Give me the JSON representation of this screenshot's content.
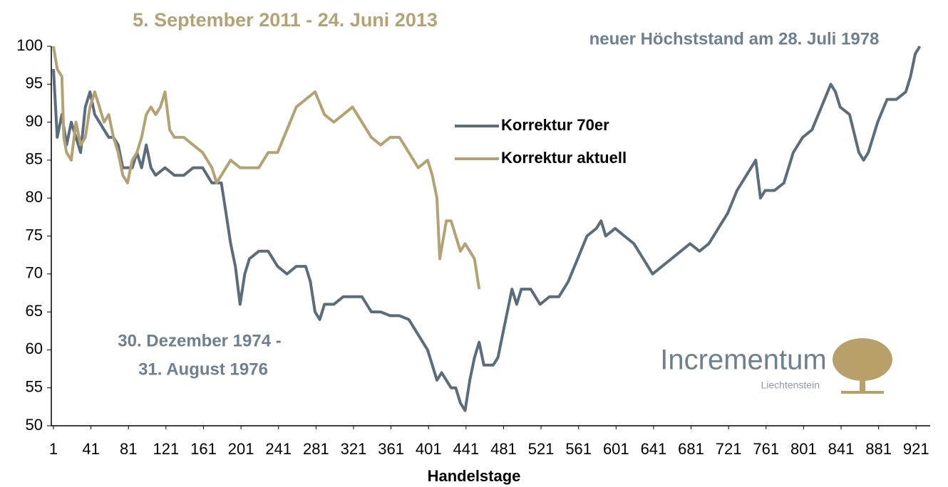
{
  "chart_data": {
    "type": "line",
    "title": "5. September 2011 - 24. Juni 2013",
    "annotation": "neuer Höchststand am 28. Juli 1978",
    "annotation_lines": [
      "30. Dezember 1974 -",
      "31. August 1976"
    ],
    "x_label": "Handelstage",
    "logo": {
      "name": "Incrementum",
      "sub": "Liechtenstein"
    },
    "xlim": [
      1,
      936
    ],
    "ylim": [
      50,
      100
    ],
    "xticks": [
      1,
      41,
      81,
      121,
      161,
      201,
      241,
      281,
      321,
      361,
      401,
      441,
      481,
      521,
      561,
      601,
      641,
      681,
      721,
      761,
      801,
      841,
      881,
      921
    ],
    "yticks": [
      50,
      55,
      60,
      65,
      70,
      75,
      80,
      85,
      90,
      95,
      100
    ],
    "grid": false,
    "series": [
      {
        "name": "Korrektur 70er",
        "color": "#5b6c7b",
        "x": [
          1,
          5,
          10,
          15,
          20,
          25,
          30,
          35,
          40,
          45,
          50,
          55,
          60,
          65,
          70,
          75,
          80,
          85,
          90,
          95,
          100,
          105,
          110,
          120,
          130,
          140,
          150,
          160,
          165,
          170,
          180,
          185,
          190,
          195,
          200,
          205,
          210,
          220,
          230,
          240,
          250,
          260,
          270,
          275,
          280,
          285,
          290,
          300,
          310,
          320,
          330,
          340,
          350,
          360,
          370,
          380,
          390,
          400,
          405,
          410,
          415,
          420,
          425,
          430,
          435,
          440,
          445,
          450,
          455,
          460,
          470,
          475,
          480,
          485,
          490,
          495,
          500,
          510,
          520,
          530,
          540,
          550,
          560,
          570,
          580,
          585,
          590,
          600,
          610,
          620,
          630,
          640,
          650,
          660,
          670,
          680,
          690,
          700,
          710,
          720,
          730,
          740,
          750,
          755,
          760,
          770,
          780,
          790,
          800,
          810,
          820,
          830,
          835,
          840,
          850,
          860,
          865,
          870,
          880,
          890,
          900,
          910,
          915,
          920,
          925
        ],
        "values": [
          97,
          88,
          91,
          87,
          90,
          88,
          86,
          92,
          94,
          91,
          90,
          89,
          88,
          88,
          87,
          84,
          84,
          84,
          86,
          84,
          87,
          84,
          83,
          84,
          83,
          83,
          84,
          84,
          83,
          82,
          82,
          78,
          74,
          71,
          66,
          70,
          72,
          73,
          73,
          71,
          70,
          71,
          71,
          69,
          65,
          64,
          66,
          66,
          67,
          67,
          67,
          65,
          65,
          64.5,
          64.5,
          64,
          62,
          60,
          58,
          56,
          57,
          56,
          55,
          55,
          53,
          52,
          56,
          59,
          61,
          58,
          58,
          59,
          62,
          65,
          68,
          66,
          68,
          68,
          66,
          67,
          67,
          69,
          72,
          75,
          76,
          77,
          75,
          76,
          75,
          74,
          72,
          70,
          71,
          72,
          73,
          74,
          73,
          74,
          76,
          78,
          81,
          83,
          85,
          80,
          81,
          81,
          82,
          86,
          88,
          89,
          92,
          95,
          94,
          92,
          91,
          86,
          85,
          86,
          90,
          93,
          93,
          94,
          96,
          99,
          100
        ]
      },
      {
        "name": "Korrektur aktuell",
        "color": "#b3a274",
        "x": [
          1,
          5,
          10,
          12,
          15,
          20,
          25,
          30,
          35,
          40,
          45,
          50,
          55,
          60,
          65,
          70,
          75,
          80,
          85,
          90,
          95,
          100,
          105,
          110,
          115,
          120,
          125,
          130,
          140,
          150,
          160,
          170,
          175,
          180,
          190,
          200,
          210,
          220,
          230,
          240,
          250,
          260,
          270,
          280,
          290,
          300,
          310,
          320,
          330,
          340,
          350,
          360,
          370,
          380,
          390,
          400,
          405,
          410,
          413,
          420,
          425,
          430,
          435,
          440,
          445,
          450,
          455
        ],
        "values": [
          100,
          97,
          96,
          88,
          86,
          85,
          90,
          87,
          88,
          92,
          94,
          92,
          90,
          91,
          88,
          86,
          83,
          82,
          85,
          86,
          88,
          91,
          92,
          91,
          92,
          94,
          89,
          88,
          88,
          87,
          86,
          84,
          82,
          83,
          85,
          84,
          84,
          84,
          86,
          86,
          89,
          92,
          93,
          94,
          91,
          90,
          91,
          92,
          90,
          88,
          87,
          88,
          88,
          86,
          84,
          85,
          83,
          80,
          72,
          77,
          77,
          75,
          73,
          74,
          73,
          72,
          68
        ]
      }
    ]
  }
}
